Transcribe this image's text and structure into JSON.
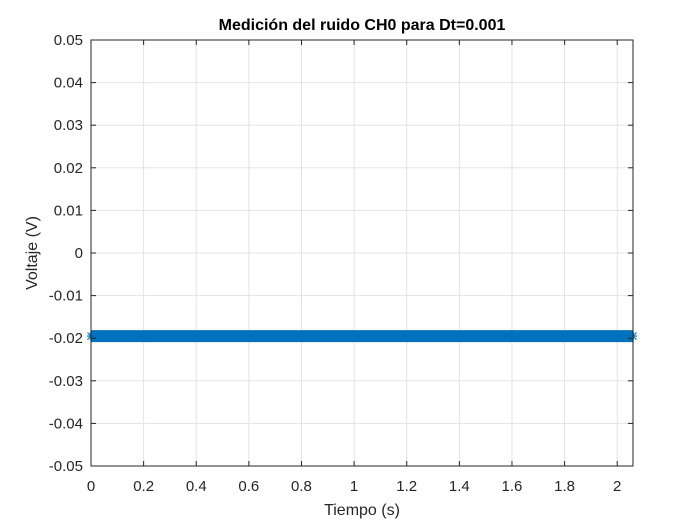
{
  "chart_data": {
    "type": "line",
    "title": "Medición del ruido CH0 para Dt=0.001",
    "xlabel": "Tiempo (s)",
    "ylabel": "Voltaje (V)",
    "xlim": [
      0,
      2.06
    ],
    "ylim": [
      -0.05,
      0.05
    ],
    "xticks": [
      0,
      0.2,
      0.4,
      0.6,
      0.8,
      1,
      1.2,
      1.4,
      1.6,
      1.8,
      2
    ],
    "xtick_labels": [
      "0",
      "0.2",
      "0.4",
      "0.6",
      "0.8",
      "1",
      "1.2",
      "1.4",
      "1.6",
      "1.8",
      "2"
    ],
    "yticks": [
      0.05,
      0.04,
      0.03,
      0.02,
      0.01,
      0,
      -0.01,
      -0.02,
      -0.03,
      -0.04,
      -0.05
    ],
    "ytick_labels": [
      "0.05",
      "0.04",
      "0.03",
      "0.02",
      "0.01",
      "0",
      "-0.01",
      "-0.02",
      "-0.03",
      "-0.04",
      "-0.05"
    ],
    "grid": true,
    "marker": "*",
    "series": [
      {
        "color": "#0072bd",
        "x_start": 0,
        "x_end": 2.06,
        "x_step": 0.001,
        "constant_value": -0.0195
      }
    ]
  }
}
